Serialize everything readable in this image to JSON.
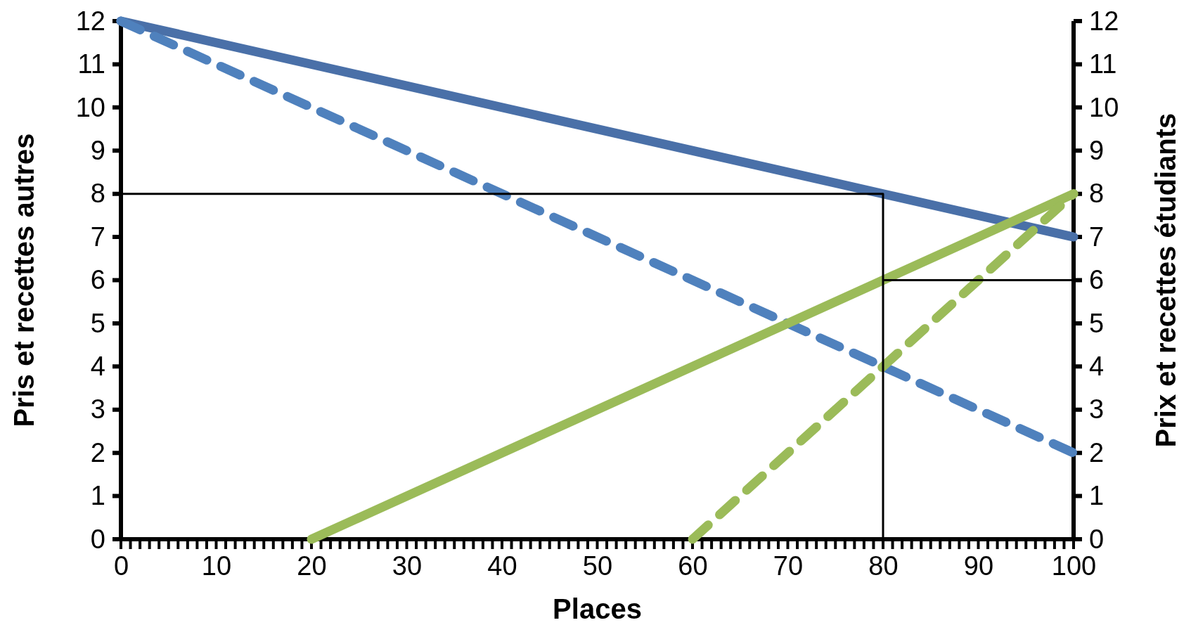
{
  "chart_data": {
    "type": "line",
    "xlabel": "Places",
    "ylabel": "Pris et recettes autres",
    "y2label": "Prix et recettes étudiants",
    "xlim": [
      0,
      100
    ],
    "xticks": [
      0,
      {
        "value": 1,
        "label": null
      },
      {
        "value": 2,
        "label": null
      },
      {
        "value": 3,
        "label": null
      },
      {
        "value": 4,
        "label": null
      },
      {
        "value": 5,
        "label": null
      },
      {
        "value": 6,
        "label": null
      },
      {
        "value": 7,
        "label": null
      },
      {
        "value": 8,
        "label": null
      },
      {
        "value": 9,
        "label": null
      },
      10,
      {
        "value": 11,
        "label": null
      },
      {
        "value": 12,
        "label": null
      },
      {
        "value": 13,
        "label": null
      },
      {
        "value": 14,
        "label": null
      },
      {
        "value": 15,
        "label": null
      },
      {
        "value": 16,
        "label": null
      },
      {
        "value": 17,
        "label": null
      },
      {
        "value": 18,
        "label": null
      },
      {
        "value": 19,
        "label": null
      },
      20,
      {
        "value": 21,
        "label": null
      },
      {
        "value": 22,
        "label": null
      },
      {
        "value": 23,
        "label": null
      },
      {
        "value": 24,
        "label": null
      },
      {
        "value": 25,
        "label": null
      },
      {
        "value": 26,
        "label": null
      },
      {
        "value": 27,
        "label": null
      },
      {
        "value": 28,
        "label": null
      },
      {
        "value": 29,
        "label": null
      },
      30,
      {
        "value": 31,
        "label": null
      },
      {
        "value": 32,
        "label": null
      },
      {
        "value": 33,
        "label": null
      },
      {
        "value": 34,
        "label": null
      },
      {
        "value": 35,
        "label": null
      },
      {
        "value": 36,
        "label": null
      },
      {
        "value": 37,
        "label": null
      },
      {
        "value": 38,
        "label": null
      },
      {
        "value": 39,
        "label": null
      },
      40,
      {
        "value": 41,
        "label": null
      },
      {
        "value": 42,
        "label": null
      },
      {
        "value": 43,
        "label": null
      },
      {
        "value": 44,
        "label": null
      },
      {
        "value": 45,
        "label": null
      },
      {
        "value": 46,
        "label": null
      },
      {
        "value": 47,
        "label": null
      },
      {
        "value": 48,
        "label": null
      },
      {
        "value": 49,
        "label": null
      },
      50,
      {
        "value": 51,
        "label": null
      },
      {
        "value": 52,
        "label": null
      },
      {
        "value": 53,
        "label": null
      },
      {
        "value": 54,
        "label": null
      },
      {
        "value": 55,
        "label": null
      },
      {
        "value": 56,
        "label": null
      },
      {
        "value": 57,
        "label": null
      },
      {
        "value": 58,
        "label": null
      },
      {
        "value": 59,
        "label": null
      },
      60,
      {
        "value": 61,
        "label": null
      },
      {
        "value": 62,
        "label": null
      },
      {
        "value": 63,
        "label": null
      },
      {
        "value": 64,
        "label": null
      },
      {
        "value": 65,
        "label": null
      },
      {
        "value": 66,
        "label": null
      },
      {
        "value": 67,
        "label": null
      },
      {
        "value": 68,
        "label": null
      },
      {
        "value": 69,
        "label": null
      },
      70,
      {
        "value": 71,
        "label": null
      },
      {
        "value": 72,
        "label": null
      },
      {
        "value": 73,
        "label": null
      },
      {
        "value": 74,
        "label": null
      },
      {
        "value": 75,
        "label": null
      },
      {
        "value": 76,
        "label": null
      },
      {
        "value": 77,
        "label": null
      },
      {
        "value": 78,
        "label": null
      },
      {
        "value": 79,
        "label": null
      },
      80,
      {
        "value": 81,
        "label": null
      },
      {
        "value": 82,
        "label": null
      },
      {
        "value": 83,
        "label": null
      },
      {
        "value": 84,
        "label": null
      },
      {
        "value": 85,
        "label": null
      },
      {
        "value": 86,
        "label": null
      },
      {
        "value": 87,
        "label": null
      },
      {
        "value": 88,
        "label": null
      },
      {
        "value": 89,
        "label": null
      },
      90,
      {
        "value": 91,
        "label": null
      },
      {
        "value": 92,
        "label": null
      },
      {
        "value": 93,
        "label": null
      },
      {
        "value": 94,
        "label": null
      },
      {
        "value": 95,
        "label": null
      },
      {
        "value": 96,
        "label": null
      },
      {
        "value": 97,
        "label": null
      },
      {
        "value": 98,
        "label": null
      },
      {
        "value": 99,
        "label": null
      },
      100
    ],
    "ylim": [
      0,
      12
    ],
    "yticks": [
      0,
      1,
      2,
      3,
      4,
      5,
      6,
      7,
      8,
      9,
      10,
      11,
      12
    ],
    "y2lim": [
      0,
      12
    ],
    "y2ticks": [
      0,
      1,
      2,
      3,
      4,
      5,
      6,
      7,
      8,
      9,
      10,
      11,
      12
    ],
    "grid": false,
    "series": [
      {
        "x": [
          0,
          100
        ],
        "values": [
          12,
          7
        ],
        "color": "#4a70a8",
        "line_style": "solid"
      },
      {
        "x": [
          0,
          100
        ],
        "values": [
          12,
          2
        ],
        "color": "#4f81bd",
        "line_style": "dashed"
      },
      {
        "x": [
          20,
          100
        ],
        "values": [
          0,
          8
        ],
        "color": "#9bbb59",
        "line_style": "solid"
      },
      {
        "x": [
          60,
          100
        ],
        "values": [
          0,
          8
        ],
        "color": "#9bbb59",
        "line_style": "dashed"
      },
      {
        "x": [
          0,
          80,
          80
        ],
        "values": [
          8,
          8,
          0
        ],
        "color": "#000000",
        "line_style": "solid"
      },
      {
        "x": [
          80,
          100
        ],
        "values": [
          6,
          6
        ],
        "color": "#000000",
        "line_style": "solid"
      }
    ]
  }
}
